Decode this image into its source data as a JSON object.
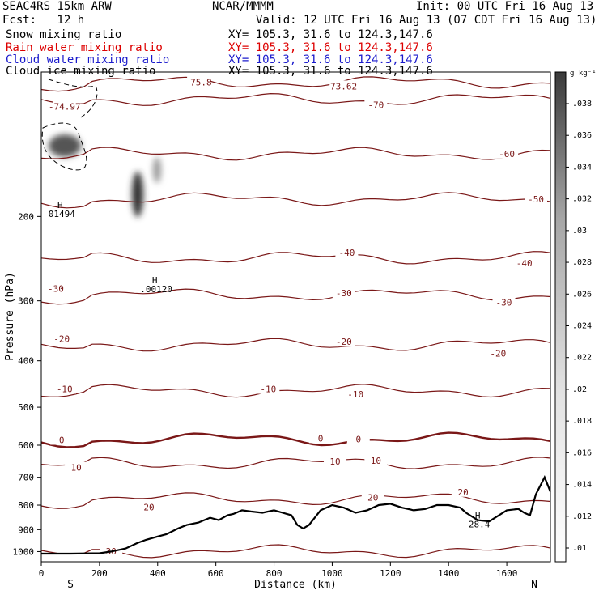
{
  "header": {
    "model": "SEAC4RS 15km ARW",
    "center": "NCAR/MMMM",
    "init": "Init: 00 UTC Fri 16 Aug 13",
    "fcst": "Fcst:   12 h",
    "valid": "Valid: 12 UTC Fri 16 Aug 13 (07 CDT Fri 16 Aug 13)"
  },
  "fields": [
    {
      "name": "Snow mixing ratio",
      "xy": "XY= 105.3, 31.6 to 124.3,147.6",
      "color": "#000000"
    },
    {
      "name": "Rain water mixing ratio",
      "xy": "XY= 105.3, 31.6 to 124.3,147.6",
      "color": "#dd0000"
    },
    {
      "name": "Cloud water mixing ratio",
      "xy": "XY= 105.3, 31.6 to 124.3,147.6",
      "color": "#1a1acc"
    },
    {
      "name": "Cloud ice mixing ratio",
      "xy": "XY= 105.3, 31.6 to 124.3,147.6",
      "color": "#000000"
    }
  ],
  "chart_data": {
    "type": "cross-section",
    "xlabel": "Distance (km)",
    "ylabel": "Pressure (hPa)",
    "xlim": [
      0,
      1750
    ],
    "ylim": [
      1050,
      100
    ],
    "y_scale": "log",
    "x_ticks": [
      0,
      200,
      400,
      600,
      800,
      1000,
      1200,
      1400,
      1600
    ],
    "y_ticks": [
      200,
      300,
      400,
      500,
      600,
      700,
      800,
      900,
      1000
    ],
    "endpoint_labels": {
      "left": "S",
      "right": "N"
    },
    "colorbar": {
      "unit": "g kg⁻¹",
      "ticks": [
        ".01",
        ".012",
        ".014",
        ".016",
        ".018",
        ".02",
        ".022",
        ".024",
        ".026",
        ".028",
        ".03",
        ".032",
        ".034",
        ".036",
        ".038"
      ]
    },
    "temperature_contours": [
      {
        "label": "-75.8",
        "x": 540,
        "p": 105
      },
      {
        "label": "-73.62",
        "x": 1030,
        "p": 107
      },
      {
        "label": "-74.97",
        "x": 80,
        "p": 118
      },
      {
        "label": "-70",
        "x": 1150,
        "p": 117
      },
      {
        "label": "-60",
        "x": 1600,
        "p": 148
      },
      {
        "label": "-50",
        "x": 1700,
        "p": 184
      },
      {
        "label": "-40",
        "x": 1050,
        "p": 238
      },
      {
        "label": "-40",
        "x": 1660,
        "p": 250
      },
      {
        "label": "-30",
        "x": 50,
        "p": 283
      },
      {
        "label": "-30",
        "x": 1040,
        "p": 289
      },
      {
        "label": "-30",
        "x": 1590,
        "p": 302
      },
      {
        "label": "-20",
        "x": 70,
        "p": 360
      },
      {
        "label": "-20",
        "x": 1040,
        "p": 365
      },
      {
        "label": "-20",
        "x": 1570,
        "p": 386
      },
      {
        "label": "-10",
        "x": 80,
        "p": 458
      },
      {
        "label": "-10",
        "x": 780,
        "p": 458
      },
      {
        "label": "-10",
        "x": 1080,
        "p": 470
      },
      {
        "label": "0",
        "x": 70,
        "p": 585
      },
      {
        "label": "0",
        "x": 960,
        "p": 580
      },
      {
        "label": "0",
        "x": 1090,
        "p": 583
      },
      {
        "label": "10",
        "x": 120,
        "p": 668
      },
      {
        "label": "10",
        "x": 1010,
        "p": 649
      },
      {
        "label": "10",
        "x": 1150,
        "p": 646
      },
      {
        "label": "20",
        "x": 370,
        "p": 808
      },
      {
        "label": "20",
        "x": 1140,
        "p": 771
      },
      {
        "label": "20",
        "x": 1450,
        "p": 751
      },
      {
        "label": "30",
        "x": 240,
        "p": 998
      }
    ],
    "extrema": [
      {
        "label": "H",
        "value": "01494",
        "x": 65,
        "p": 192
      },
      {
        "label": "H",
        "value": ".00120",
        "x": 390,
        "p": 276
      },
      {
        "label": "H",
        "value": "28.4",
        "x": 1500,
        "p": 853
      }
    ],
    "terrain": {
      "x": [
        0,
        100,
        200,
        240,
        290,
        330,
        360,
        400,
        430,
        470,
        500,
        540,
        580,
        610,
        640,
        660,
        690,
        720,
        760,
        800,
        830,
        860,
        880,
        900,
        920,
        960,
        1000,
        1040,
        1080,
        1120,
        1160,
        1200,
        1240,
        1280,
        1320,
        1360,
        1400,
        1440,
        1460,
        1500,
        1540,
        1560,
        1600,
        1640,
        1660,
        1680,
        1700,
        1730,
        1750
      ],
      "p": [
        1010,
        1010,
        1008,
        1000,
        985,
        960,
        945,
        930,
        920,
        895,
        880,
        870,
        850,
        860,
        840,
        835,
        820,
        825,
        830,
        820,
        830,
        840,
        880,
        895,
        880,
        820,
        800,
        810,
        830,
        820,
        800,
        795,
        810,
        820,
        815,
        800,
        800,
        810,
        830,
        860,
        865,
        850,
        820,
        815,
        830,
        840,
        760,
        700,
        750
      ]
    }
  }
}
